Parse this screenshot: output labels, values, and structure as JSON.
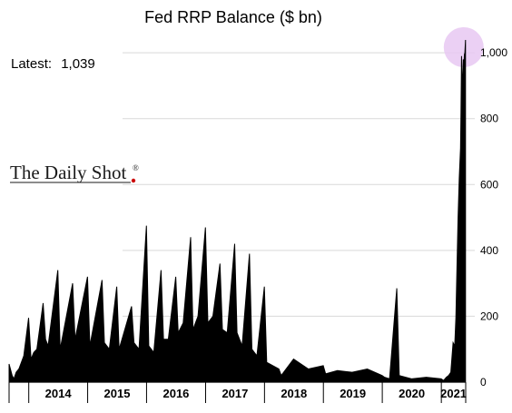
{
  "chart_data": {
    "type": "area",
    "title": "Fed RRP Balance ($ bn)",
    "annotation": {
      "label": "Latest:",
      "value": "1,039"
    },
    "watermark": "The Daily Shot",
    "watermark_mark": "®",
    "highlight_color": "#e7c8f2",
    "x_tick_labels": [
      "2014",
      "2015",
      "2016",
      "2017",
      "2018",
      "2019",
      "2020",
      "2021"
    ],
    "y_ticks": [
      {
        "value": 0,
        "label": "0"
      },
      {
        "value": 200,
        "label": "200"
      },
      {
        "value": 400,
        "label": "400"
      },
      {
        "value": 600,
        "label": "600"
      },
      {
        "value": 800,
        "label": "800"
      },
      {
        "value": 1000,
        "label": "1,000"
      }
    ],
    "ylim": [
      0,
      1050
    ],
    "xlim": [
      "2013-09-01",
      "2021-06-01"
    ],
    "grid": true,
    "series": [
      {
        "x": [
          "2013-09-01",
          "2013-09-20",
          "2013-10-01",
          "2013-10-15",
          "2013-11-01",
          "2013-12-01",
          "2013-12-31",
          "2014-01-15",
          "2014-02-01",
          "2014-02-20",
          "2014-03-31",
          "2014-04-15",
          "2014-05-01",
          "2014-06-30",
          "2014-07-15",
          "2014-09-30",
          "2014-10-15",
          "2014-12-31",
          "2015-01-15",
          "2015-03-31",
          "2015-04-15",
          "2015-05-15",
          "2015-06-30",
          "2015-07-15",
          "2015-09-30",
          "2015-10-15",
          "2015-11-15",
          "2015-12-31",
          "2016-01-15",
          "2016-02-15",
          "2016-03-31",
          "2016-04-15",
          "2016-05-15",
          "2016-06-30",
          "2016-07-15",
          "2016-08-15",
          "2016-09-30",
          "2016-10-15",
          "2016-11-15",
          "2016-12-31",
          "2017-01-15",
          "2017-02-15",
          "2017-03-31",
          "2017-04-15",
          "2017-05-15",
          "2017-06-30",
          "2017-07-15",
          "2017-08-15",
          "2017-09-30",
          "2017-10-15",
          "2017-11-15",
          "2017-12-31",
          "2018-01-15",
          "2018-03-31",
          "2018-04-15",
          "2018-06-30",
          "2018-09-30",
          "2018-12-31",
          "2019-01-15",
          "2019-03-29",
          "2019-06-28",
          "2019-09-30",
          "2019-12-31",
          "2020-01-15",
          "2020-02-15",
          "2020-03-31",
          "2020-04-15",
          "2020-06-30",
          "2020-09-30",
          "2020-12-31",
          "2021-01-15",
          "2021-02-01",
          "2021-02-15",
          "2021-03-01",
          "2021-03-15",
          "2021-03-25",
          "2021-04-01",
          "2021-04-08",
          "2021-04-15",
          "2021-04-22",
          "2021-04-30",
          "2021-05-03",
          "2021-05-06",
          "2021-05-10",
          "2021-05-13",
          "2021-05-17",
          "2021-05-20",
          "2021-05-24",
          "2021-05-27",
          "2021-05-31"
        ],
        "values": [
          55,
          20,
          10,
          30,
          40,
          80,
          195,
          70,
          90,
          100,
          240,
          130,
          110,
          340,
          100,
          300,
          130,
          320,
          110,
          310,
          120,
          100,
          290,
          100,
          230,
          120,
          100,
          475,
          110,
          90,
          340,
          130,
          130,
          320,
          150,
          180,
          440,
          160,
          200,
          470,
          180,
          200,
          360,
          160,
          150,
          420,
          150,
          110,
          390,
          100,
          80,
          290,
          60,
          40,
          20,
          70,
          40,
          50,
          25,
          35,
          30,
          40,
          20,
          15,
          10,
          285,
          20,
          10,
          15,
          10,
          5,
          15,
          20,
          30,
          120,
          110,
          195,
          350,
          500,
          620,
          710,
          820,
          990,
          880,
          920,
          980,
          960,
          995,
          1000,
          1039
        ]
      }
    ]
  }
}
